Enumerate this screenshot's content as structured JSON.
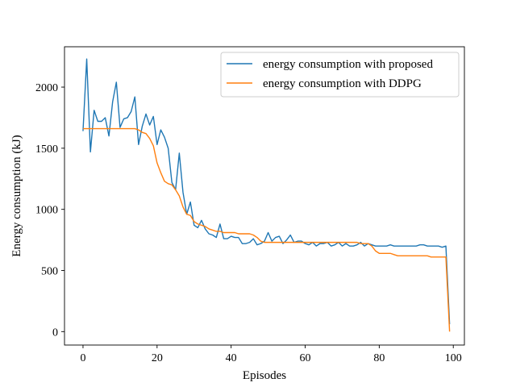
{
  "chart_data": {
    "type": "line",
    "title": "",
    "xlabel": "Episodes",
    "ylabel": "Energy consumption (kJ)",
    "xlim": [
      -5,
      103
    ],
    "ylim": [
      -110,
      2330
    ],
    "xticks": [
      "0",
      "20",
      "40",
      "60",
      "80",
      "100"
    ],
    "xtick_values": [
      0,
      20,
      40,
      60,
      80,
      100
    ],
    "yticks": [
      "0",
      "500",
      "1000",
      "1500",
      "2000"
    ],
    "ytick_values": [
      0,
      500,
      1000,
      1500,
      2000
    ],
    "grid": false,
    "legend_position": "top-right",
    "series": [
      {
        "name": "energy consumption with proposed",
        "color": "#1f77b4",
        "x": [
          0,
          1,
          2,
          3,
          4,
          5,
          6,
          7,
          8,
          9,
          10,
          11,
          12,
          13,
          14,
          15,
          16,
          17,
          18,
          19,
          20,
          21,
          22,
          23,
          24,
          25,
          26,
          27,
          28,
          29,
          30,
          31,
          32,
          33,
          34,
          35,
          36,
          37,
          38,
          39,
          40,
          41,
          42,
          43,
          44,
          45,
          46,
          47,
          48,
          49,
          50,
          51,
          52,
          53,
          54,
          55,
          56,
          57,
          58,
          59,
          60,
          61,
          62,
          63,
          64,
          65,
          66,
          67,
          68,
          69,
          70,
          71,
          72,
          73,
          74,
          75,
          76,
          77,
          78,
          79,
          80,
          81,
          82,
          83,
          84,
          85,
          86,
          87,
          88,
          89,
          90,
          91,
          92,
          93,
          94,
          95,
          96,
          97,
          98,
          99
        ],
        "values": [
          1640,
          2230,
          1470,
          1810,
          1720,
          1720,
          1750,
          1600,
          1880,
          2040,
          1670,
          1740,
          1750,
          1800,
          1920,
          1530,
          1680,
          1780,
          1690,
          1760,
          1530,
          1650,
          1590,
          1500,
          1220,
          1160,
          1460,
          1140,
          960,
          1060,
          870,
          850,
          910,
          840,
          800,
          790,
          770,
          880,
          760,
          760,
          780,
          770,
          770,
          720,
          720,
          730,
          760,
          710,
          720,
          740,
          810,
          740,
          770,
          780,
          720,
          750,
          790,
          730,
          740,
          740,
          720,
          710,
          730,
          700,
          720,
          720,
          730,
          700,
          710,
          730,
          700,
          720,
          700,
          700,
          710,
          730,
          700,
          720,
          710,
          700,
          700,
          700,
          700,
          710,
          700,
          700,
          700,
          700,
          700,
          700,
          700,
          710,
          710,
          700,
          700,
          700,
          700,
          690,
          700,
          60
        ]
      },
      {
        "name": "energy consumption with DDPG",
        "color": "#ff7f0e",
        "x": [
          0,
          1,
          2,
          3,
          4,
          5,
          6,
          7,
          8,
          9,
          10,
          11,
          12,
          13,
          14,
          15,
          16,
          17,
          18,
          19,
          20,
          21,
          22,
          23,
          24,
          25,
          26,
          27,
          28,
          29,
          30,
          31,
          32,
          33,
          34,
          35,
          36,
          37,
          38,
          39,
          40,
          41,
          42,
          43,
          44,
          45,
          46,
          47,
          48,
          49,
          50,
          51,
          52,
          53,
          54,
          55,
          56,
          57,
          58,
          59,
          60,
          61,
          62,
          63,
          64,
          65,
          66,
          67,
          68,
          69,
          70,
          71,
          72,
          73,
          74,
          75,
          76,
          77,
          78,
          79,
          80,
          81,
          82,
          83,
          84,
          85,
          86,
          87,
          88,
          89,
          90,
          91,
          92,
          93,
          94,
          95,
          96,
          97,
          98,
          99
        ],
        "values": [
          1660,
          1660,
          1660,
          1660,
          1660,
          1660,
          1660,
          1660,
          1660,
          1660,
          1660,
          1660,
          1660,
          1660,
          1660,
          1650,
          1630,
          1620,
          1580,
          1520,
          1380,
          1300,
          1230,
          1210,
          1200,
          1160,
          1110,
          1020,
          960,
          950,
          900,
          880,
          870,
          860,
          840,
          830,
          820,
          820,
          810,
          810,
          810,
          810,
          800,
          800,
          800,
          800,
          790,
          770,
          740,
          730,
          730,
          730,
          730,
          730,
          730,
          730,
          730,
          730,
          730,
          730,
          730,
          730,
          730,
          730,
          730,
          730,
          730,
          730,
          730,
          730,
          730,
          730,
          730,
          730,
          730,
          720,
          720,
          720,
          700,
          660,
          640,
          640,
          640,
          640,
          630,
          620,
          620,
          620,
          620,
          620,
          620,
          620,
          620,
          620,
          610,
          610,
          610,
          610,
          610,
          0
        ]
      }
    ]
  }
}
